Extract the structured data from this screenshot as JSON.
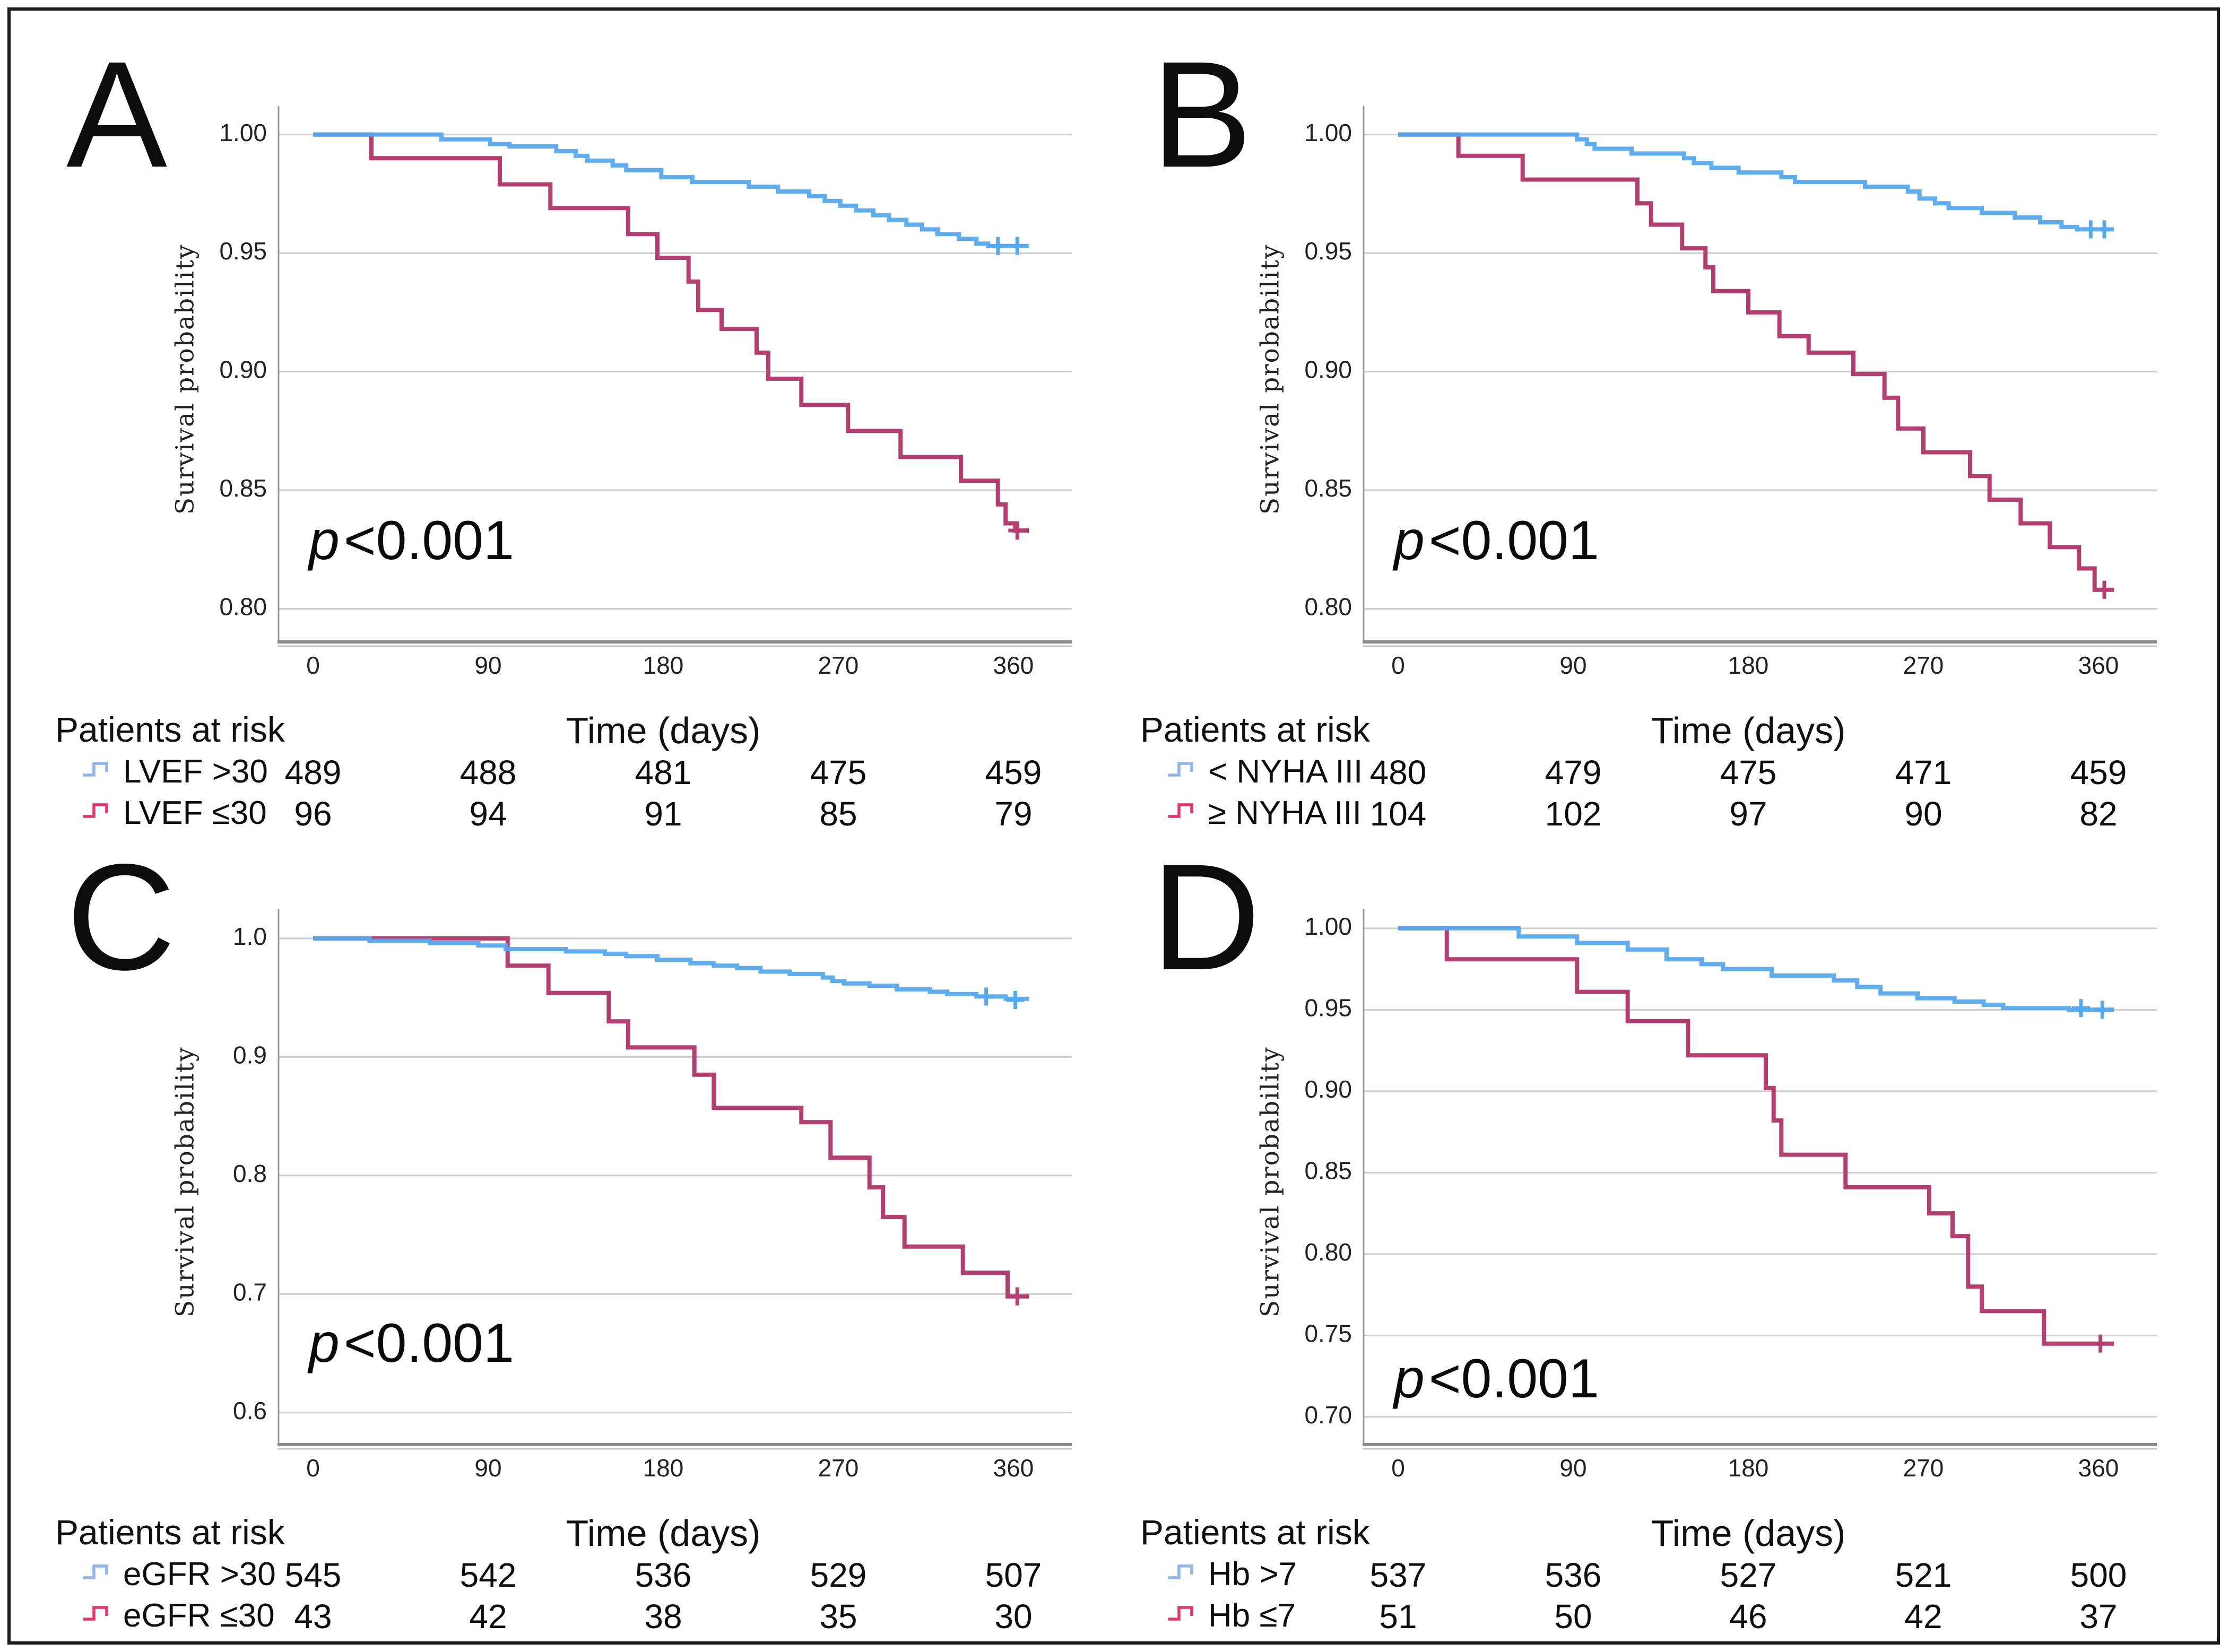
{
  "figure": {
    "background": "#ffffff",
    "border_color": "#1c1c1c"
  },
  "colors": {
    "blue": "#55a9f0",
    "red": "#b53e6f",
    "legend_blue": "#8fb4ec",
    "legend_red": "#e8356d",
    "grid": "#cccccc",
    "axis": "#9b9b9b",
    "axis_bottom": "#8a8a8a",
    "text": "#1b1b1b"
  },
  "chart_data": [
    {
      "type": "line",
      "step": true,
      "panel_label": "A",
      "ylabel": "Survival probability",
      "xlabel": "Time (days)",
      "p_italic": "p",
      "p_rest": "<0.001",
      "x_ticks": [
        0,
        90,
        180,
        270,
        360
      ],
      "x_max": 368,
      "y_domain": [
        1.012,
        0.786
      ],
      "y_ticks": [
        {
          "value": 1.0,
          "label": "1.00"
        },
        {
          "value": 0.95,
          "label": "0.95"
        },
        {
          "value": 0.9,
          "label": "0.90"
        },
        {
          "value": 0.85,
          "label": "0.85"
        },
        {
          "value": 0.8,
          "label": "0.80"
        }
      ],
      "series": [
        {
          "name": "LVEF >30",
          "color": "blue",
          "points": [
            [
              0,
              1.0
            ],
            [
              66,
              0.998
            ],
            [
              91,
              0.996
            ],
            [
              101,
              0.995
            ],
            [
              125,
              0.993
            ],
            [
              135,
              0.991
            ],
            [
              141,
              0.989
            ],
            [
              154,
              0.987
            ],
            [
              161,
              0.985
            ],
            [
              179,
              0.982
            ],
            [
              195,
              0.98
            ],
            [
              224,
              0.978
            ],
            [
              239,
              0.976
            ],
            [
              255,
              0.974
            ],
            [
              263,
              0.972
            ],
            [
              271,
              0.97
            ],
            [
              279,
              0.968
            ],
            [
              288,
              0.966
            ],
            [
              296,
              0.964
            ],
            [
              305,
              0.962
            ],
            [
              313,
              0.96
            ],
            [
              321,
              0.958
            ],
            [
              332,
              0.956
            ],
            [
              341,
              0.954
            ],
            [
              347,
              0.953
            ]
          ],
          "censors": [
            [
              352,
              0.953
            ],
            [
              362,
              0.953
            ]
          ]
        },
        {
          "name": "LVEF ≤30",
          "color": "red",
          "points": [
            [
              0,
              1.0
            ],
            [
              30,
              0.99
            ],
            [
              96,
              0.979
            ],
            [
              122,
              0.969
            ],
            [
              162,
              0.958
            ],
            [
              177,
              0.948
            ],
            [
              193,
              0.938
            ],
            [
              198,
              0.926
            ],
            [
              210,
              0.918
            ],
            [
              228,
              0.908
            ],
            [
              234,
              0.897
            ],
            [
              251,
              0.886
            ],
            [
              275,
              0.875
            ],
            [
              302,
              0.864
            ],
            [
              333,
              0.854
            ],
            [
              352,
              0.844
            ],
            [
              356,
              0.836
            ],
            [
              361,
              0.833
            ]
          ],
          "censors": [
            [
              362,
              0.833
            ]
          ]
        }
      ],
      "risk_table": {
        "title": "Patients at risk",
        "rows": [
          {
            "label": "LVEF >30",
            "color": "blue",
            "counts": [
              489,
              488,
              481,
              475,
              459
            ]
          },
          {
            "label": "LVEF ≤30",
            "color": "red",
            "counts": [
              96,
              94,
              91,
              85,
              79
            ]
          }
        ]
      }
    },
    {
      "type": "line",
      "step": true,
      "panel_label": "B",
      "ylabel": "Survival probability",
      "xlabel": "Time (days)",
      "p_italic": "p",
      "p_rest": "<0.001",
      "x_ticks": [
        0,
        90,
        180,
        270,
        360
      ],
      "x_max": 368,
      "y_domain": [
        1.012,
        0.786
      ],
      "y_ticks": [
        {
          "value": 1.0,
          "label": "1.00"
        },
        {
          "value": 0.95,
          "label": "0.95"
        },
        {
          "value": 0.9,
          "label": "0.90"
        },
        {
          "value": 0.85,
          "label": "0.85"
        },
        {
          "value": 0.8,
          "label": "0.80"
        }
      ],
      "series": [
        {
          "name": "< NYHA III",
          "color": "blue",
          "points": [
            [
              0,
              1.0
            ],
            [
              92,
              0.998
            ],
            [
              97,
              0.996
            ],
            [
              101,
              0.994
            ],
            [
              120,
              0.992
            ],
            [
              147,
              0.99
            ],
            [
              152,
              0.988
            ],
            [
              161,
              0.986
            ],
            [
              175,
              0.984
            ],
            [
              197,
              0.982
            ],
            [
              204,
              0.98
            ],
            [
              240,
              0.978
            ],
            [
              262,
              0.976
            ],
            [
              268,
              0.973
            ],
            [
              276,
              0.971
            ],
            [
              283,
              0.969
            ],
            [
              300,
              0.967
            ],
            [
              317,
              0.965
            ],
            [
              330,
              0.963
            ],
            [
              341,
              0.961
            ],
            [
              349,
              0.96
            ]
          ],
          "censors": [
            [
              356,
              0.96
            ],
            [
              363,
              0.96
            ]
          ]
        },
        {
          "name": "≥ NYHA III",
          "color": "red",
          "points": [
            [
              0,
              1.0
            ],
            [
              31,
              0.991
            ],
            [
              64,
              0.981
            ],
            [
              123,
              0.971
            ],
            [
              130,
              0.962
            ],
            [
              146,
              0.952
            ],
            [
              158,
              0.944
            ],
            [
              162,
              0.934
            ],
            [
              180,
              0.925
            ],
            [
              196,
              0.915
            ],
            [
              211,
              0.908
            ],
            [
              234,
              0.899
            ],
            [
              250,
              0.889
            ],
            [
              257,
              0.876
            ],
            [
              270,
              0.866
            ],
            [
              294,
              0.856
            ],
            [
              304,
              0.846
            ],
            [
              320,
              0.836
            ],
            [
              335,
              0.826
            ],
            [
              350,
              0.817
            ],
            [
              358,
              0.808
            ]
          ],
          "censors": [
            [
              363,
              0.808
            ]
          ]
        }
      ],
      "risk_table": {
        "title": "Patients at risk",
        "rows": [
          {
            "label": "< NYHA III",
            "color": "blue",
            "counts": [
              480,
              479,
              475,
              471,
              459
            ]
          },
          {
            "label": "≥ NYHA III",
            "color": "red",
            "counts": [
              104,
              102,
              97,
              90,
              82
            ]
          }
        ]
      }
    },
    {
      "type": "line",
      "step": true,
      "panel_label": "C",
      "ylabel": "Survival probability",
      "xlabel": "Time (days)",
      "p_italic": "p",
      "p_rest": "<0.001",
      "x_ticks": [
        0,
        90,
        180,
        270,
        360
      ],
      "x_max": 368,
      "y_domain": [
        1.025,
        0.573
      ],
      "y_ticks": [
        {
          "value": 1.0,
          "label": "1.0"
        },
        {
          "value": 0.9,
          "label": "0.9"
        },
        {
          "value": 0.8,
          "label": "0.8"
        },
        {
          "value": 0.7,
          "label": "0.7"
        },
        {
          "value": 0.6,
          "label": "0.6"
        }
      ],
      "series": [
        {
          "name": "eGFR >30",
          "color": "blue",
          "points": [
            [
              0,
              1.0
            ],
            [
              29,
              0.998
            ],
            [
              60,
              0.996
            ],
            [
              85,
              0.994
            ],
            [
              99,
              0.991
            ],
            [
              130,
              0.989
            ],
            [
              150,
              0.987
            ],
            [
              161,
              0.985
            ],
            [
              177,
              0.982
            ],
            [
              194,
              0.979
            ],
            [
              206,
              0.977
            ],
            [
              218,
              0.975
            ],
            [
              230,
              0.972
            ],
            [
              245,
              0.97
            ],
            [
              262,
              0.967
            ],
            [
              267,
              0.964
            ],
            [
              273,
              0.962
            ],
            [
              286,
              0.96
            ],
            [
              300,
              0.957
            ],
            [
              317,
              0.955
            ],
            [
              326,
              0.953
            ],
            [
              341,
              0.951
            ],
            [
              356,
              0.949
            ]
          ],
          "censors": [
            [
              346,
              0.951
            ],
            [
              361,
              0.948
            ]
          ]
        },
        {
          "name": "eGFR ≤30",
          "color": "red",
          "points": [
            [
              0,
              1.0
            ],
            [
              100,
              0.977
            ],
            [
              121,
              0.954
            ],
            [
              152,
              0.93
            ],
            [
              162,
              0.908
            ],
            [
              196,
              0.885
            ],
            [
              206,
              0.857
            ],
            [
              251,
              0.845
            ],
            [
              266,
              0.815
            ],
            [
              286,
              0.79
            ],
            [
              293,
              0.765
            ],
            [
              304,
              0.74
            ],
            [
              334,
              0.718
            ],
            [
              357,
              0.698
            ]
          ],
          "censors": [
            [
              362,
              0.698
            ]
          ]
        }
      ],
      "risk_table": {
        "title": "Patients at risk",
        "rows": [
          {
            "label": "eGFR >30",
            "color": "blue",
            "counts": [
              545,
              542,
              536,
              529,
              507
            ]
          },
          {
            "label": "eGFR ≤30",
            "color": "red",
            "counts": [
              43,
              42,
              38,
              35,
              30
            ]
          }
        ]
      }
    },
    {
      "type": "line",
      "step": true,
      "panel_label": "D",
      "ylabel": "Survival probability",
      "xlabel": "Time (days)",
      "p_italic": "p",
      "p_rest": "<0.001",
      "x_ticks": [
        0,
        90,
        180,
        270,
        360
      ],
      "x_max": 368,
      "y_domain": [
        1.012,
        0.683
      ],
      "y_ticks": [
        {
          "value": 1.0,
          "label": "1.00"
        },
        {
          "value": 0.95,
          "label": "0.95"
        },
        {
          "value": 0.9,
          "label": "0.90"
        },
        {
          "value": 0.85,
          "label": "0.85"
        },
        {
          "value": 0.8,
          "label": "0.80"
        },
        {
          "value": 0.75,
          "label": "0.75"
        },
        {
          "value": 0.7,
          "label": "0.70"
        }
      ],
      "series": [
        {
          "name": "Hb >7",
          "color": "blue",
          "points": [
            [
              0,
              1.0
            ],
            [
              62,
              0.995
            ],
            [
              92,
              0.991
            ],
            [
              118,
              0.987
            ],
            [
              138,
              0.981
            ],
            [
              156,
              0.978
            ],
            [
              167,
              0.975
            ],
            [
              192,
              0.971
            ],
            [
              224,
              0.968
            ],
            [
              236,
              0.964
            ],
            [
              248,
              0.96
            ],
            [
              267,
              0.957
            ],
            [
              286,
              0.955
            ],
            [
              301,
              0.953
            ],
            [
              311,
              0.951
            ],
            [
              345,
              0.95
            ]
          ],
          "censors": [
            [
              351,
              0.951
            ],
            [
              362,
              0.95
            ]
          ]
        },
        {
          "name": "Hb ≤7",
          "color": "red",
          "points": [
            [
              0,
              1.0
            ],
            [
              25,
              0.981
            ],
            [
              92,
              0.961
            ],
            [
              118,
              0.943
            ],
            [
              149,
              0.922
            ],
            [
              189,
              0.902
            ],
            [
              193,
              0.882
            ],
            [
              197,
              0.861
            ],
            [
              230,
              0.841
            ],
            [
              273,
              0.825
            ],
            [
              285,
              0.811
            ],
            [
              293,
              0.78
            ],
            [
              300,
              0.765
            ],
            [
              332,
              0.745
            ]
          ],
          "censors": [
            [
              361,
              0.745
            ]
          ]
        }
      ],
      "risk_table": {
        "title": "Patients at risk",
        "rows": [
          {
            "label": "Hb >7",
            "color": "blue",
            "counts": [
              537,
              536,
              527,
              521,
              500
            ]
          },
          {
            "label": "Hb ≤7",
            "color": "red",
            "counts": [
              51,
              50,
              46,
              42,
              37
            ]
          }
        ]
      }
    }
  ]
}
